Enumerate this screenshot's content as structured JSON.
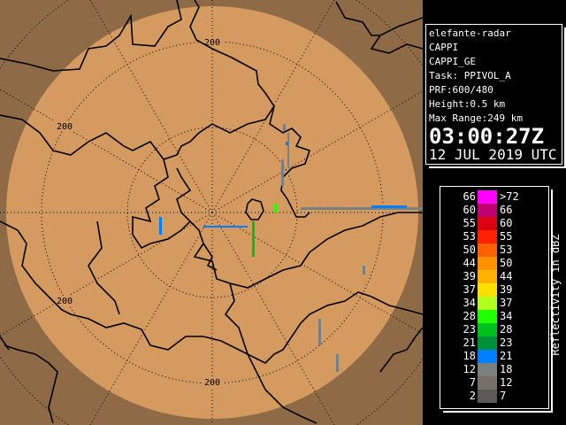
{
  "info": {
    "radar": "elefante-radar",
    "product": "CAPPI",
    "product_name": "CAPPI_GE",
    "task": "Task: PPIVOL_A",
    "prf": "PRF:600/480",
    "height": "Height:0.5 km",
    "max_range": "Max Range:249 km",
    "time": "03:00:27Z",
    "date": "12 JUL 2019 UTC"
  },
  "map": {
    "range_labels": [
      "200",
      "200",
      "200",
      "200"
    ],
    "colors": {
      "outside": "#8f6a46",
      "coverage": "#d49a60",
      "borders": "#000000"
    }
  },
  "legend": {
    "title": "Reflectivity in dBZ",
    "rows": [
      {
        "low": "66",
        "high": ">72",
        "color": "#ff00ff"
      },
      {
        "low": "60",
        "high": "66",
        "color": "#c00070"
      },
      {
        "low": "55",
        "high": "60",
        "color": "#dd0010"
      },
      {
        "low": "53",
        "high": "55",
        "color": "#ff2000"
      },
      {
        "low": "50",
        "high": "53",
        "color": "#ff6000"
      },
      {
        "low": "44",
        "high": "50",
        "color": "#ff9000"
      },
      {
        "low": "39",
        "high": "44",
        "color": "#ffb000"
      },
      {
        "low": "37",
        "high": "39",
        "color": "#ffe000"
      },
      {
        "low": "34",
        "high": "37",
        "color": "#b0ff20"
      },
      {
        "low": "28",
        "high": "34",
        "color": "#20ff00"
      },
      {
        "low": "23",
        "high": "28",
        "color": "#00c020"
      },
      {
        "low": "21",
        "high": "23",
        "color": "#00903a"
      },
      {
        "low": "18",
        "high": "21",
        "color": "#0080ff"
      },
      {
        "low": "12",
        "high": "18",
        "color": "#7a8080"
      },
      {
        "low": "7",
        "high": "12",
        "color": "#767068"
      },
      {
        "low": "2",
        "high": "7",
        "color": "#5c5a58"
      }
    ]
  }
}
